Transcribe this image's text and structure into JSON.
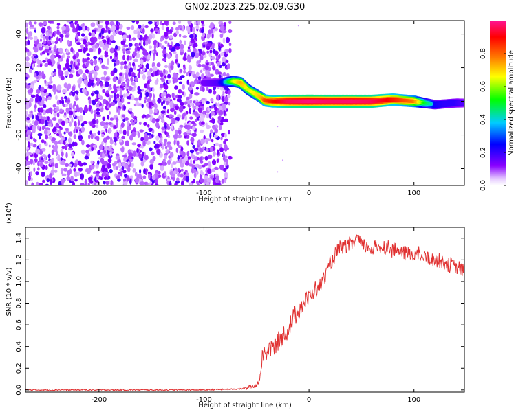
{
  "title": "GN02.2023.225.02.09.G30",
  "chart_data": [
    {
      "type": "heatmap",
      "xlabel": "Height of straight line (km)",
      "ylabel": "Frequency (Hz)",
      "xlim": [
        -270,
        148
      ],
      "ylim": [
        -50,
        48
      ],
      "xticks": [
        -200,
        -100,
        0,
        100
      ],
      "xtick_labels": [
        "-200",
        "-100",
        "0",
        "100"
      ],
      "yticks": [
        -40,
        -20,
        0,
        20,
        40
      ],
      "ytick_labels": [
        "-40",
        "-20",
        "0",
        "20",
        "40"
      ],
      "noise_region_km": [
        -270,
        -75
      ],
      "signal_track": {
        "x": [
          -100,
          -85,
          -72,
          -65,
          -58,
          -50,
          -45,
          -42,
          -35,
          -20,
          0,
          20,
          40,
          60,
          80,
          90,
          100,
          110,
          120,
          130,
          140,
          148
        ],
        "freq": [
          11,
          11,
          12,
          11,
          7,
          4,
          2,
          0.5,
          0,
          0,
          0,
          0,
          0,
          0,
          1,
          0.5,
          0,
          -1,
          -2,
          -1.5,
          -1,
          -1
        ],
        "amplitude": [
          0.2,
          0.25,
          0.6,
          0.7,
          0.6,
          0.65,
          0.7,
          0.8,
          0.85,
          0.95,
          0.98,
          0.96,
          0.97,
          0.95,
          0.85,
          0.8,
          0.75,
          0.5,
          0.35,
          0.3,
          0.3,
          0.25
        ]
      },
      "colorbar": {
        "label": "Normalized spectral amplitude",
        "range": [
          0,
          1
        ],
        "ticks": [
          0.0,
          0.2,
          0.4,
          0.6,
          0.8
        ],
        "tick_labels": [
          "0.0",
          "0.2",
          "0.4",
          "0.6",
          "0.8"
        ],
        "colors": [
          "#ffffff",
          "#8800ff",
          "#0000ff",
          "#00ccff",
          "#00ff00",
          "#ffff00",
          "#ff7700",
          "#ff0000",
          "#ff1493"
        ]
      }
    },
    {
      "type": "line",
      "xlabel": "Height of straight line (km)",
      "ylabel": "SNR (10 * v/v)",
      "scale_label": "(x10",
      "scale_exp": "4",
      "scale_close": ")",
      "xlim": [
        -270,
        148
      ],
      "ylim": [
        -0.02,
        1.5
      ],
      "xticks": [
        -200,
        -100,
        0,
        100
      ],
      "xtick_labels": [
        "-200",
        "-100",
        "0",
        "100"
      ],
      "yticks": [
        0.0,
        0.2,
        0.4,
        0.6,
        0.8,
        1.0,
        1.2,
        1.4
      ],
      "ytick_labels": [
        "0.0",
        "0.2",
        "0.4",
        "0.6",
        "0.8",
        "1.0",
        "1.2",
        "1.4"
      ],
      "color": "#e03030",
      "series": [
        {
          "name": "SNR",
          "x": [
            -270,
            -200,
            -100,
            -65,
            -60,
            -55,
            -50,
            -47,
            -45,
            -43,
            -40,
            -35,
            -30,
            -25,
            -20,
            -15,
            -10,
            -5,
            0,
            5,
            10,
            15,
            20,
            25,
            30,
            35,
            40,
            45,
            50,
            55,
            60,
            70,
            80,
            90,
            100,
            110,
            120,
            130,
            140,
            148
          ],
          "y": [
            0.0,
            0.0,
            0.0,
            0.01,
            0.02,
            0.03,
            0.04,
            0.1,
            0.25,
            0.35,
            0.35,
            0.4,
            0.42,
            0.5,
            0.55,
            0.65,
            0.75,
            0.8,
            0.85,
            0.92,
            0.95,
            1.05,
            1.15,
            1.25,
            1.3,
            1.32,
            1.33,
            1.4,
            1.34,
            1.32,
            1.31,
            1.32,
            1.3,
            1.26,
            1.25,
            1.23,
            1.2,
            1.18,
            1.13,
            1.1
          ]
        }
      ]
    }
  ]
}
